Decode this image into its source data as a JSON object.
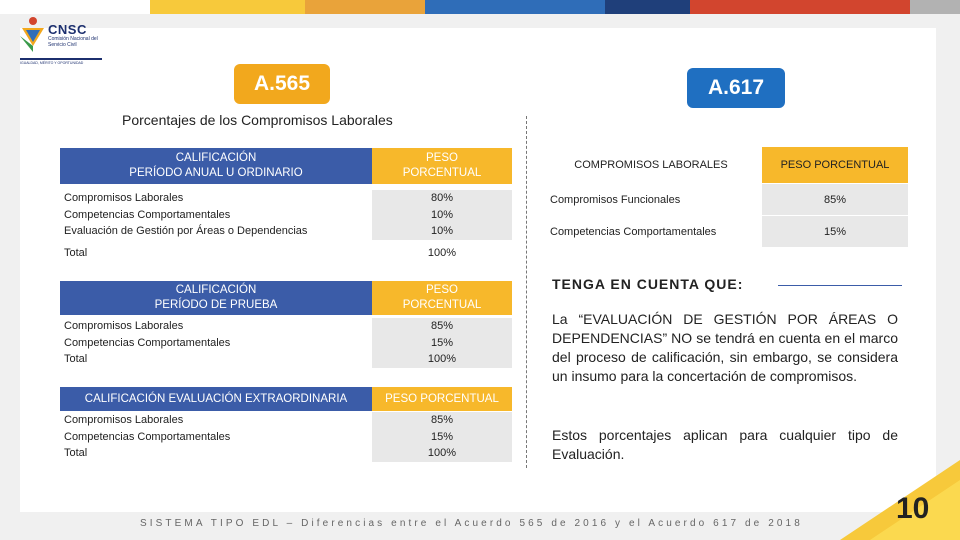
{
  "colors": {
    "blue": "#3b5ca8",
    "yellow": "#f7b82b",
    "orange": "#f2a81d",
    "badge_blue": "#1f6fc1"
  },
  "logo": {
    "name": "CNSC",
    "sub": "Comisión Nacional del Servicio Civil",
    "tagline": "IGUALDAD, MÉRITO Y OPORTUNIDAD"
  },
  "badges": {
    "left": "A.565",
    "right": "A.617"
  },
  "subtitle": "Porcentajes de los Compromisos Laborales",
  "table1": {
    "header_left": "CALIFICACIÓN\nPERÍODO ANUAL U ORDINARIO",
    "header_right": "PESO\nPORCENTUAL",
    "rows": "Compromisos Laborales\nCompetencias Comportamentales\nEvaluación de Gestión por Áreas o Dependencias",
    "values": "80%\n10%\n10%",
    "total_label": "Total",
    "total_value": "100%"
  },
  "table2": {
    "header_left": "CALIFICACIÓN\nPERÍODO DE PRUEBA",
    "header_right": "PESO\nPORCENTUAL",
    "rows": "Compromisos Laborales\nCompetencias Comportamentales\nTotal",
    "values": "85%\n15%\n100%"
  },
  "table3": {
    "header_left": "CALIFICACIÓN EVALUACIÓN EXTRAORDINARIA",
    "header_right": "PESO PORCENTUAL",
    "rows": "Compromisos Laborales\nCompetencias Comportamentales\nTotal",
    "values": "85%\n15%\n100%"
  },
  "table617": {
    "header_left": "COMPROMISOS LABORALES",
    "header_right": "PESO PORCENTUAL",
    "rows": [
      {
        "label": "Compromisos Funcionales",
        "value": "85%"
      },
      {
        "label": "Competencias Comportamentales",
        "value": "15%"
      }
    ]
  },
  "note": {
    "title": "TENGA EN CUENTA QUE:",
    "para1": "La “EVALUACIÓN DE GESTIÓN POR ÁREAS O DEPENDENCIAS” NO se tendrá en cuenta en el marco del proceso de calificación, sin embargo, se considera un insumo para la concertación de compromisos.",
    "para2": "Estos porcentajes aplican para cualquier tipo de Evaluación."
  },
  "footer": "SISTEMA TIPO EDL – Diferencias entre el Acuerdo 565 de 2016 y el Acuerdo 617 de 2018",
  "page_number": "10"
}
